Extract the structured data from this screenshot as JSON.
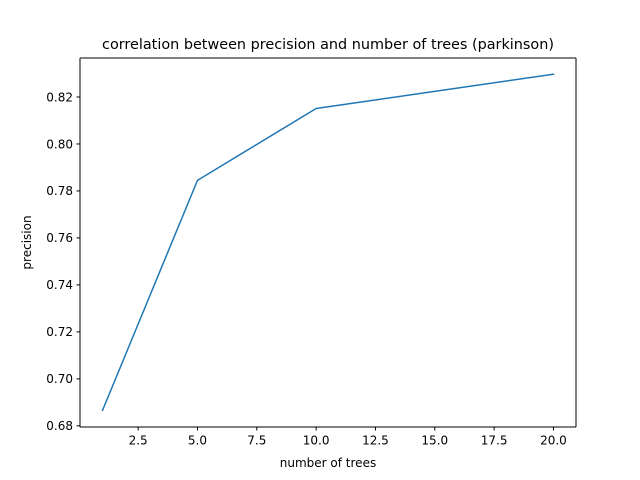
{
  "chart_data": {
    "type": "line",
    "title": "correlation between precision and number of trees (parkinson)",
    "xlabel": "number of trees",
    "ylabel": "precision",
    "xlim": [
      0.05,
      20.95
    ],
    "ylim": [
      0.6795,
      0.8366
    ],
    "xticks": [
      2.5,
      5.0,
      7.5,
      10.0,
      12.5,
      15.0,
      17.5,
      20.0
    ],
    "xtick_labels": [
      "2.5",
      "5.0",
      "7.5",
      "10.0",
      "12.5",
      "15.0",
      "17.5",
      "20.0"
    ],
    "yticks": [
      0.68,
      0.7,
      0.72,
      0.74,
      0.76,
      0.78,
      0.8,
      0.82
    ],
    "ytick_labels": [
      "0.68",
      "0.70",
      "0.72",
      "0.74",
      "0.76",
      "0.78",
      "0.80",
      "0.82"
    ],
    "grid": false,
    "series": [
      {
        "color": "#1f77b4",
        "x": [
          1,
          5,
          10,
          20
        ],
        "y": [
          0.6866,
          0.7845,
          0.8151,
          0.8297
        ]
      }
    ]
  }
}
